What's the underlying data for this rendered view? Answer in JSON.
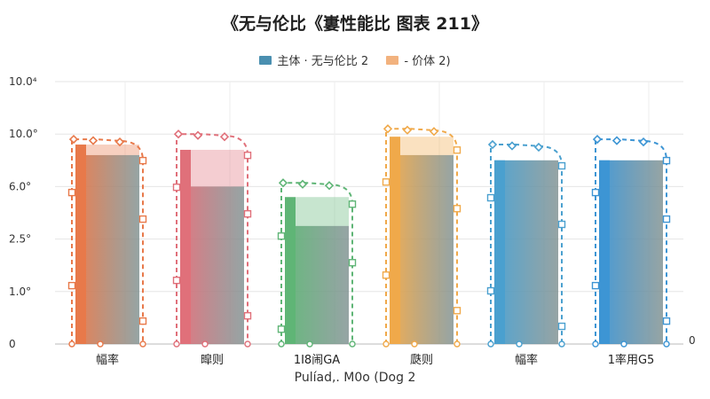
{
  "chart_data": {
    "type": "bar",
    "title": "《无与伦比《㟺性能比 图表 211》",
    "xlabel": "Pulíad,. M0o (Dog 2",
    "ylabel": "",
    "y_tick_labels": [
      "0",
      "1.0°",
      "2.5°",
      "6.0°",
      "10.0°",
      "10.0⁴"
    ],
    "right_axis_label": "0",
    "ylim": [
      0,
      5
    ],
    "grid": true,
    "legend_position": "top-center",
    "categories": [
      "幅率",
      "暭则",
      "1I8闹GA",
      "瓞则",
      "幅率",
      "1率用G5"
    ],
    "bar_colors": [
      "#e8794a",
      "#e0707a",
      "#5fb576",
      "#f0a94a",
      "#4aa0cf",
      "#3d95d4"
    ],
    "series": [
      {
        "name": "主体 · 无与伦比 2",
        "color": "#4a8fb0",
        "values": [
          3.6,
          3.0,
          2.25,
          3.6,
          3.5,
          3.5
        ]
      },
      {
        "name": "- 价体 2)",
        "color": "#f2b27e",
        "values": [
          0.2,
          0.7,
          0.55,
          0.35,
          0.0,
          0.0
        ]
      }
    ],
    "marker_tops": [
      3.9,
      4.0,
      3.07,
      4.1,
      3.8,
      3.9
    ]
  }
}
